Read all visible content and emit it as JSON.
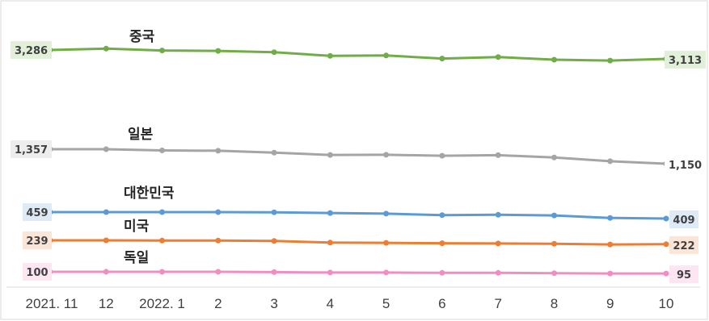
{
  "chart_data": {
    "type": "line",
    "title": "",
    "xlabel": "",
    "ylabel": "",
    "categories": [
      "2021. 11",
      "12",
      "2022. 1",
      "2",
      "3",
      "4",
      "5",
      "6",
      "7",
      "8",
      "9",
      "10"
    ],
    "grid": false,
    "legend": "none",
    "series": [
      {
        "name": "중국",
        "color": "#70ad47",
        "label_bg": "#e2efd9",
        "values": [
          3286,
          3303,
          3276,
          3268,
          3244,
          3172,
          3180,
          3120,
          3150,
          3098,
          3080,
          3113
        ],
        "start_label": "3,286",
        "end_label": "3,113"
      },
      {
        "name": "일본",
        "color": "#a5a5a5",
        "label_bg": "#ededed",
        "values": [
          1357,
          1357,
          1340,
          1335,
          1308,
          1275,
          1278,
          1264,
          1272,
          1240,
          1185,
          1150
        ],
        "start_label": "1,357",
        "end_label": "1,150"
      },
      {
        "name": "대한민국",
        "color": "#5b9bd5",
        "label_bg": "#deebf7",
        "values": [
          459,
          459,
          459,
          459,
          458,
          452,
          447,
          436,
          438,
          433,
          414,
          409
        ],
        "start_label": "459",
        "end_label": "409"
      },
      {
        "name": "미국",
        "color": "#ed7d31",
        "label_bg": "#fbe5d6",
        "values": [
          239,
          239,
          238,
          238,
          236,
          229,
          228,
          226,
          225,
          224,
          221,
          222
        ],
        "start_label": "239",
        "end_label": "222"
      },
      {
        "name": "독일",
        "color": "#f08ec3",
        "label_bg": "#fde6f2",
        "values": [
          100,
          100,
          100,
          100,
          99,
          98,
          98,
          97,
          97,
          96,
          95,
          95
        ],
        "start_label": "100",
        "end_label": "95"
      }
    ]
  }
}
